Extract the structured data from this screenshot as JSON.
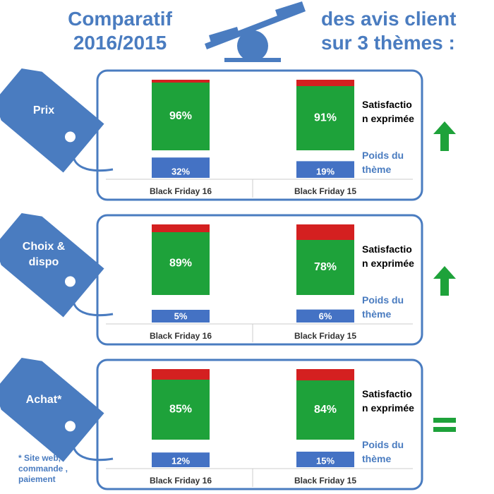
{
  "header": {
    "left_title": "Comparatif 2016/2015",
    "right_title": "des avis client sur 3 thèmes :"
  },
  "footnote": "* Site web, commande , paiement",
  "chart_data": [
    {
      "type": "bar",
      "title": "Prix",
      "categories": [
        "Black Friday 16",
        "Black Friday 15"
      ],
      "ylim": [
        0,
        100
      ],
      "series": [
        {
          "name": "Satisfaction exprimée",
          "color": "#1ea23a",
          "values": [
            96,
            91
          ],
          "value_labels": [
            "96%",
            "91%"
          ]
        },
        {
          "name": "Poids du thème",
          "color": "#4472c4",
          "values": [
            32,
            19
          ],
          "value_labels": [
            "32%",
            "19%"
          ]
        }
      ]
    },
    {
      "type": "bar",
      "title": "Choix & dispo",
      "categories": [
        "Black Friday 16",
        "Black Friday 15"
      ],
      "ylim": [
        0,
        100
      ],
      "series": [
        {
          "name": "Satisfaction exprimée",
          "color": "#1ea23a",
          "values": [
            89,
            78
          ],
          "value_labels": [
            "89%",
            "78%"
          ]
        },
        {
          "name": "Poids du thème",
          "color": "#4472c4",
          "values": [
            5,
            6
          ],
          "value_labels": [
            "5%",
            "6%"
          ]
        }
      ]
    },
    {
      "type": "bar",
      "title": "Achat*",
      "categories": [
        "Black Friday 16",
        "Black Friday 15"
      ],
      "ylim": [
        0,
        100
      ],
      "series": [
        {
          "name": "Satisfaction exprimée",
          "color": "#1ea23a",
          "values": [
            85,
            84
          ],
          "value_labels": [
            "85%",
            "84%"
          ]
        },
        {
          "name": "Poids du thème",
          "color": "#4472c4",
          "values": [
            12,
            15
          ],
          "value_labels": [
            "12%",
            "15%"
          ]
        }
      ]
    }
  ]
}
